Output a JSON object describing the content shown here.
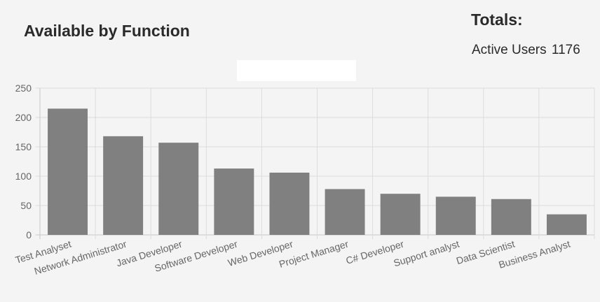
{
  "header": {
    "title": "Available by Function"
  },
  "totals": {
    "title": "Totals:",
    "active_users_label": "Active Users",
    "active_users_value": "1176"
  },
  "colors": {
    "bar": "#808080",
    "grid": "#dcdcdc",
    "axis": "#c8c8c8",
    "tick_text": "#666666"
  },
  "chart_data": {
    "type": "bar",
    "title": "",
    "xlabel": "",
    "ylabel": "",
    "ylim": [
      0,
      250
    ],
    "yticks": [
      0,
      50,
      100,
      150,
      200,
      250
    ],
    "grid": true,
    "categories": [
      "Test Analyset",
      "Network Administrator",
      "Java Developer",
      "Software Developer",
      "Web Developer",
      "Project Manager",
      "C# Developer",
      "Support analyst",
      "Data Scientist",
      "Business Analyst"
    ],
    "values": [
      215,
      168,
      157,
      113,
      106,
      78,
      70,
      65,
      61,
      35
    ]
  }
}
